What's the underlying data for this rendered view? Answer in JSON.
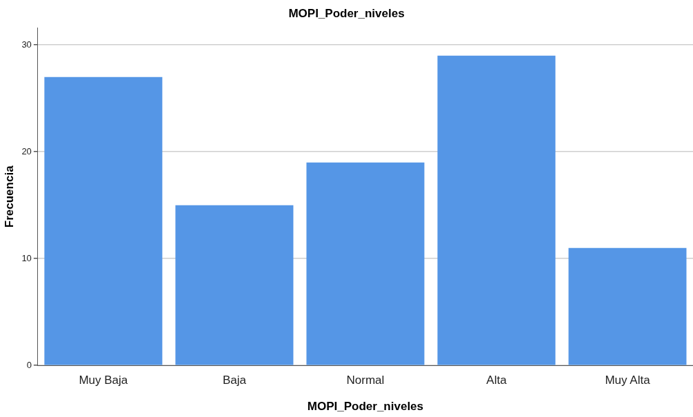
{
  "chart_data": {
    "type": "bar",
    "title": "MOPI_Poder_niveles",
    "xlabel": "MOPI_Poder_niveles",
    "ylabel": "Frecuencia",
    "categories": [
      "Muy Baja",
      "Baja",
      "Normal",
      "Alta",
      "Muy Alta"
    ],
    "values": [
      27,
      15,
      19,
      29,
      11
    ],
    "color": "#5596e6",
    "ylim": [
      0,
      31.6
    ],
    "yticks": [
      0,
      10,
      20,
      30
    ],
    "grid": "y",
    "legend": false
  }
}
